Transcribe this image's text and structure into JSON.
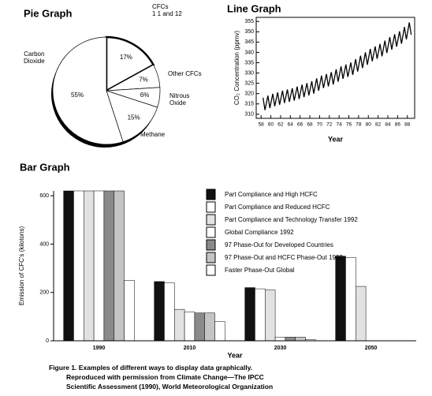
{
  "chart_data": [
    {
      "type": "pie",
      "title": "Pie Graph",
      "categories": [
        "CFCs\n1 1 and 12",
        "Other CFCs",
        "Nitrous\nOxide",
        "Methane",
        "Carbon\nDioxide"
      ],
      "values": [
        17,
        7,
        6,
        15,
        55
      ],
      "value_labels": [
        "17%",
        "7%",
        "6%",
        "15%",
        "55%"
      ],
      "color": "#ffffff"
    },
    {
      "type": "line",
      "title": "Line Graph",
      "x_label": "Year",
      "y_label": "CO₂ Concentration (ppmv)",
      "x": [
        58.4,
        58.8,
        59.4,
        59.8,
        60.4,
        60.8,
        61.4,
        61.8,
        62.4,
        62.8,
        63.4,
        63.8,
        64.4,
        64.8,
        65.4,
        65.8,
        66.4,
        66.8,
        67.4,
        67.8,
        68.4,
        68.8,
        69.4,
        69.8,
        70.4,
        70.8,
        71.4,
        71.8,
        72.4,
        72.8,
        73.4,
        73.8,
        74.4,
        74.8,
        75.4,
        75.8,
        76.4,
        76.8,
        77.4,
        77.8,
        78.4,
        78.8,
        79.4,
        79.8,
        80.4,
        80.8,
        81.4,
        81.8,
        82.4,
        82.8,
        83.4,
        83.8,
        84.4,
        84.8,
        85.4,
        85.8,
        86.4,
        86.8,
        87.4,
        87.8,
        88.4,
        88.8
      ],
      "series": [
        {
          "name": "CO₂",
          "color": "#000000",
          "values": [
            318.0,
            312.0,
            319.0,
            313.0,
            319.9,
            313.9,
            320.6,
            314.6,
            321.4,
            315.4,
            322.0,
            316.0,
            322.6,
            316.6,
            323.4,
            317.4,
            324.3,
            318.3,
            325.1,
            319.1,
            326.0,
            320.0,
            327.4,
            321.4,
            328.7,
            322.7,
            329.5,
            323.5,
            330.4,
            324.4,
            331.8,
            325.8,
            333.2,
            327.2,
            334.1,
            328.1,
            335.1,
            329.1,
            336.7,
            330.7,
            338.4,
            332.4,
            340.0,
            334.0,
            341.7,
            335.7,
            342.9,
            336.9,
            344.1,
            338.1,
            345.7,
            339.7,
            347.4,
            341.4,
            348.8,
            342.8,
            350.2,
            344.2,
            352.3,
            346.3,
            354.5,
            348.5
          ]
        }
      ],
      "xlim": [
        57,
        89.5
      ],
      "xticks": [
        58,
        60,
        62,
        64,
        66,
        68,
        70,
        72,
        74,
        76,
        78,
        80,
        82,
        84,
        86,
        88
      ],
      "ylim": [
        308,
        357
      ],
      "yticks": [
        310,
        315,
        320,
        325,
        330,
        335,
        340,
        345,
        350,
        355
      ]
    },
    {
      "type": "bar",
      "title": "Bar Graph",
      "x_label": "Year",
      "y_label": "Emission of CFC's (kilotons)",
      "categories": [
        "1990",
        "2010",
        "2030",
        "2050"
      ],
      "series": [
        {
          "name": "Part Compliance and High HCFC",
          "color": "#111111",
          "values": [
            620,
            245,
            220,
            350
          ]
        },
        {
          "name": "Part Compliance and Reduced HCFC",
          "color": "#ffffff",
          "values": [
            620,
            240,
            215,
            345
          ]
        },
        {
          "name": "Part Compliance and Technology Transfer 1992",
          "color": "#e2e2e2",
          "values": [
            620,
            130,
            210,
            225
          ]
        },
        {
          "name": "Global Compliance 1992",
          "color": "#ffffff",
          "values": [
            620,
            120,
            15,
            0
          ]
        },
        {
          "name": "97 Phase-Out for Developed Countries",
          "color": "#8a8a8a",
          "values": [
            620,
            115,
            15,
            0
          ]
        },
        {
          "name": "97 Phase-Out and HCFC Phase-Out 1992",
          "color": "#c4c4c4",
          "values": [
            620,
            115,
            15,
            0
          ]
        },
        {
          "name": "Faster Phase-Out Global",
          "color": "#ffffff",
          "values": [
            250,
            80,
            5,
            0
          ]
        }
      ],
      "ylim": [
        0,
        620
      ],
      "yticks": [
        0,
        200,
        400,
        600
      ]
    }
  ],
  "caption": [
    "Figure 1.  Examples of different ways to display data graphically.",
    "Reproduced with permission from Climate Change—The IPCC",
    "Scientific Assessment (1990), World Meteorological Organization"
  ]
}
